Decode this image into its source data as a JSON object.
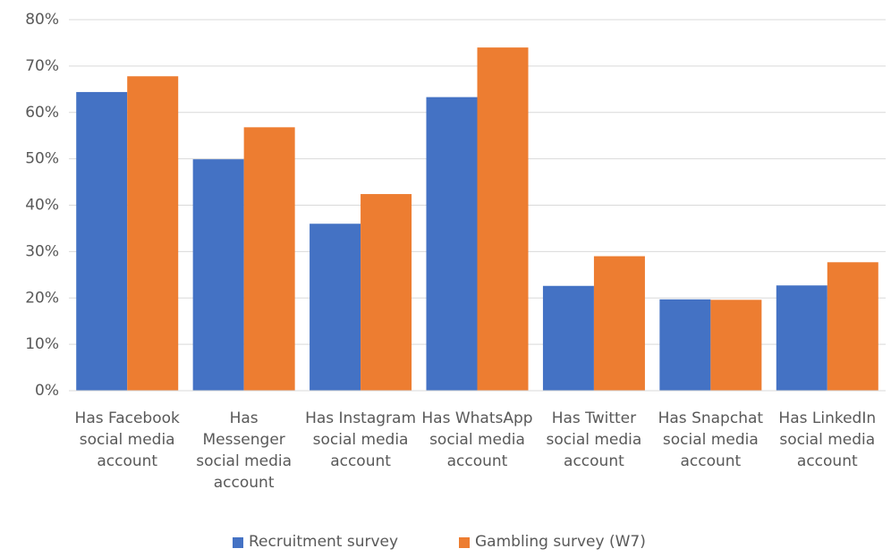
{
  "chart_data": {
    "type": "bar",
    "categories": [
      "Has Facebook social media account",
      "Has Messenger social media account",
      "Has Instagram social media account",
      "Has WhatsApp social media account",
      "Has Twitter social media account",
      "Has Snapchat social media account",
      "Has LinkedIn social media account"
    ],
    "series": [
      {
        "name": "Recruitment survey",
        "color": "#4472c4",
        "values": [
          64.4,
          49.9,
          36.0,
          63.3,
          22.6,
          19.7,
          22.7
        ]
      },
      {
        "name": "Gambling survey (W7)",
        "color": "#ed7d31",
        "values": [
          67.8,
          56.8,
          42.4,
          74.0,
          29.0,
          19.6,
          27.7
        ]
      }
    ],
    "ylim": [
      0,
      80
    ],
    "yticks": [
      {
        "value": 0,
        "label": "0%"
      },
      {
        "value": 10,
        "label": "10%"
      },
      {
        "value": 20,
        "label": "20%"
      },
      {
        "value": 30,
        "label": "30%"
      },
      {
        "value": 40,
        "label": "40%"
      },
      {
        "value": 50,
        "label": "50%"
      },
      {
        "value": 60,
        "label": "60%"
      },
      {
        "value": 70,
        "label": "70%"
      },
      {
        "value": 80,
        "label": "80%"
      }
    ],
    "grid": true,
    "legend": "bottom"
  }
}
